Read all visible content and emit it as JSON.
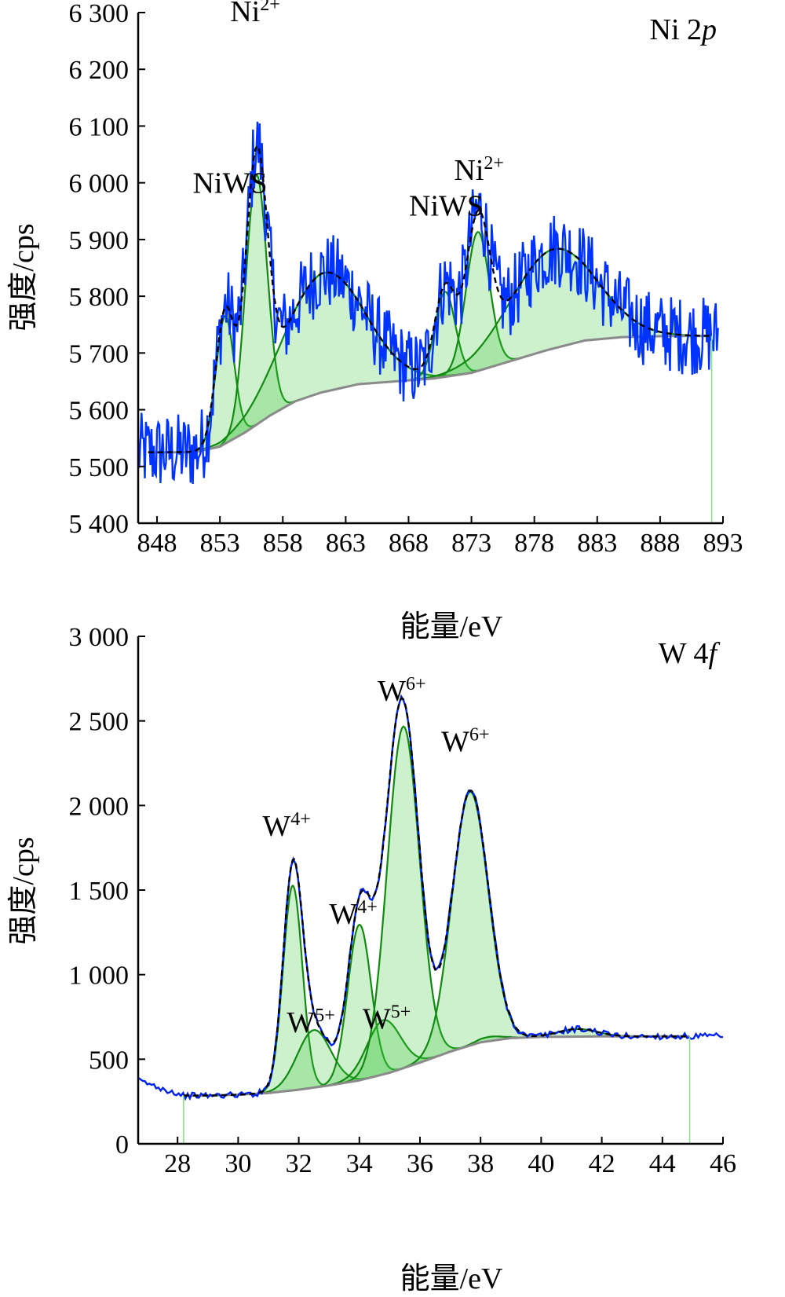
{
  "chart_data": [
    {
      "type": "line",
      "panel_label": "Ni 2p",
      "xlabel": "能量/eV",
      "ylabel": "强度/cps",
      "xlim": [
        846.5,
        893
      ],
      "ylim": [
        5400,
        6300
      ],
      "x_ticks": [
        848,
        853,
        858,
        863,
        868,
        873,
        878,
        883,
        888,
        893
      ],
      "y_ticks": [
        {
          "v": 5400,
          "t": "5 400"
        },
        {
          "v": 5500,
          "t": "5 500"
        },
        {
          "v": 5600,
          "t": "5 600"
        },
        {
          "v": 5700,
          "t": "5 700"
        },
        {
          "v": 5800,
          "t": "5 800"
        },
        {
          "v": 5900,
          "t": "5 900"
        },
        {
          "v": 6000,
          "t": "6 000"
        },
        {
          "v": 6100,
          "t": "6 100"
        },
        {
          "v": 6200,
          "t": "6 200"
        },
        {
          "v": 6300,
          "t": "6 300"
        }
      ],
      "baseline": [
        [
          847.3,
          5525
        ],
        [
          851,
          5525
        ],
        [
          853,
          5535
        ],
        [
          855,
          5560
        ],
        [
          857,
          5590
        ],
        [
          859,
          5615
        ],
        [
          861,
          5630
        ],
        [
          864,
          5645
        ],
        [
          867,
          5650
        ],
        [
          870,
          5655
        ],
        [
          873,
          5665
        ],
        [
          876,
          5685
        ],
        [
          879,
          5705
        ],
        [
          882,
          5722
        ],
        [
          885,
          5728
        ],
        [
          889,
          5730
        ],
        [
          892,
          5730
        ]
      ],
      "peaks": [
        {
          "center": 853.4,
          "height": 225,
          "fwhm": 1.7
        },
        {
          "center": 855.9,
          "height": 440,
          "fwhm": 2.0
        },
        {
          "center": 861.3,
          "height": 210,
          "fwhm": 7.5
        },
        {
          "center": 870.9,
          "height": 150,
          "fwhm": 1.9
        },
        {
          "center": 873.5,
          "height": 245,
          "fwhm": 2.2
        },
        {
          "center": 879.5,
          "height": 175,
          "fwhm": 8.0
        }
      ],
      "raw_range": [
        846.5,
        892.6
      ],
      "vertical_markers": [
        892.1
      ],
      "annotations": [
        {
          "x": 853.8,
          "y": 5982,
          "base": "NiWS",
          "sup": ""
        },
        {
          "x": 855.8,
          "y": 6285,
          "base": "Ni",
          "sup": "2+"
        },
        {
          "x": 871.0,
          "y": 5942,
          "base": "NiWS",
          "sup": ""
        },
        {
          "x": 873.6,
          "y": 6005,
          "base": "Ni",
          "sup": "2+"
        }
      ]
    },
    {
      "type": "line",
      "panel_label": "W 4f",
      "xlabel": "能量/eV",
      "ylabel": "强度/cps",
      "xlim": [
        26.7,
        46
      ],
      "ylim": [
        0,
        3000
      ],
      "x_ticks": [
        28,
        30,
        32,
        34,
        36,
        38,
        40,
        42,
        44,
        46
      ],
      "y_ticks": [
        {
          "v": 0,
          "t": "0"
        },
        {
          "v": 500,
          "t": "500"
        },
        {
          "v": 1000,
          "t": "1 000"
        },
        {
          "v": 1500,
          "t": "1 500"
        },
        {
          "v": 2000,
          "t": "2 000"
        },
        {
          "v": 2500,
          "t": "2 500"
        },
        {
          "v": 3000,
          "t": "3 000"
        }
      ],
      "baseline": [
        [
          28.2,
          285
        ],
        [
          29,
          285
        ],
        [
          30,
          290
        ],
        [
          31,
          300
        ],
        [
          32,
          320
        ],
        [
          33,
          345
        ],
        [
          34,
          375
        ],
        [
          35,
          420
        ],
        [
          36,
          480
        ],
        [
          37,
          545
        ],
        [
          38,
          600
        ],
        [
          39,
          625
        ],
        [
          40,
          632
        ],
        [
          42,
          635
        ],
        [
          44.9,
          635
        ]
      ],
      "peaks": [
        {
          "center": 31.8,
          "height": 1210,
          "fwhm": 0.75
        },
        {
          "center": 32.5,
          "height": 340,
          "fwhm": 1.3
        },
        {
          "center": 34.0,
          "height": 920,
          "fwhm": 0.9
        },
        {
          "center": 34.8,
          "height": 320,
          "fwhm": 1.3
        },
        {
          "center": 35.45,
          "height": 2020,
          "fwhm": 1.25
        },
        {
          "center": 37.65,
          "height": 1500,
          "fwhm": 1.4
        },
        {
          "center": 38.3,
          "height": 25,
          "fwhm": 1.0
        },
        {
          "center": 41.2,
          "height": 45,
          "fwhm": 1.5
        }
      ],
      "raw_range": [
        26.7,
        46
      ],
      "vertical_markers": [
        28.2,
        44.9
      ],
      "annotations": [
        {
          "x": 31.6,
          "y": 1820,
          "base": "W",
          "sup": "4+"
        },
        {
          "x": 33.8,
          "y": 1300,
          "base": "W",
          "sup": "4+"
        },
        {
          "x": 32.4,
          "y": 660,
          "base": "W",
          "sup": "5+"
        },
        {
          "x": 34.9,
          "y": 680,
          "base": "W",
          "sup": "5+"
        },
        {
          "x": 35.4,
          "y": 2620,
          "base": "W",
          "sup": "6+"
        },
        {
          "x": 37.5,
          "y": 2320,
          "base": "W",
          "sup": "6+"
        }
      ]
    }
  ]
}
